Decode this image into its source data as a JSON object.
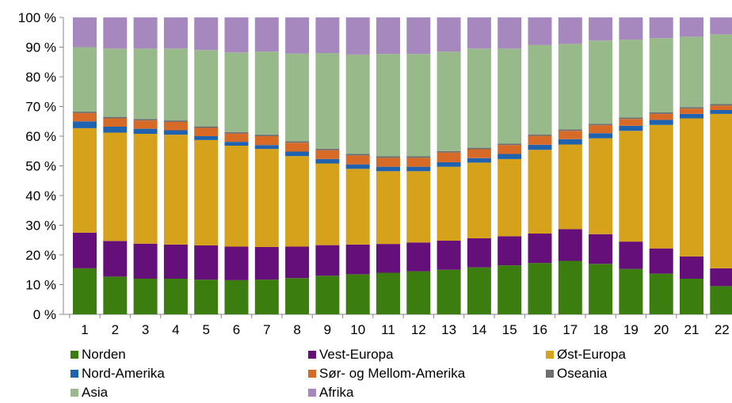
{
  "chart_data": {
    "type": "bar",
    "stacked": true,
    "categories": [
      "1",
      "2",
      "3",
      "4",
      "5",
      "6",
      "7",
      "8",
      "9",
      "10",
      "11",
      "12",
      "13",
      "14",
      "15",
      "16",
      "17",
      "18",
      "19",
      "20",
      "21",
      "22"
    ],
    "ylim": [
      0,
      100
    ],
    "yticks": [
      "0 %",
      "10 %",
      "20 %",
      "30 %",
      "40 %",
      "50 %",
      "60 %",
      "70 %",
      "80 %",
      "90 %",
      "100 %"
    ],
    "grid": false,
    "legend_position": "bottom",
    "series": [
      {
        "name": "Norden",
        "color": "#3b7d0f",
        "values": [
          15.5,
          12.7,
          12.0,
          12.0,
          11.7,
          11.5,
          11.7,
          12.2,
          13.0,
          13.5,
          14.0,
          14.5,
          15.0,
          15.8,
          16.5,
          17.3,
          18.0,
          17.0,
          15.3,
          13.7,
          12.0,
          9.5
        ]
      },
      {
        "name": "Vest-Europa",
        "color": "#640f7a",
        "values": [
          12.0,
          12.0,
          11.8,
          11.5,
          11.5,
          11.3,
          11.0,
          10.6,
          10.3,
          10.0,
          9.7,
          9.7,
          9.8,
          9.8,
          9.8,
          9.9,
          10.7,
          10.0,
          9.2,
          8.5,
          7.5,
          6.0
        ]
      },
      {
        "name": "Øst-Europa",
        "color": "#d6a21c",
        "values": [
          35.2,
          36.5,
          37.0,
          37.0,
          35.5,
          34.0,
          33.0,
          30.5,
          27.5,
          25.5,
          24.5,
          24.0,
          24.9,
          25.5,
          26.0,
          28.2,
          28.5,
          32.3,
          37.3,
          41.6,
          46.5,
          52.0
        ]
      },
      {
        "name": "Nord-Amerika",
        "color": "#1e62b0",
        "values": [
          2.3,
          2.0,
          1.7,
          1.5,
          1.3,
          1.3,
          1.3,
          1.5,
          1.5,
          1.5,
          1.5,
          1.5,
          1.5,
          1.5,
          1.7,
          1.7,
          1.8,
          1.7,
          1.7,
          1.7,
          1.5,
          1.3
        ]
      },
      {
        "name": "Sør- og Mellom-Amerika",
        "color": "#d86a28",
        "values": [
          2.8,
          2.8,
          2.8,
          2.8,
          2.8,
          2.8,
          3.0,
          3.0,
          3.0,
          3.0,
          3.0,
          3.0,
          3.3,
          3.0,
          3.0,
          3.0,
          2.8,
          2.7,
          2.3,
          2.0,
          1.8,
          1.5
        ]
      },
      {
        "name": "Oseania",
        "color": "#6e6e6e",
        "values": [
          0.5,
          0.5,
          0.5,
          0.5,
          0.5,
          0.5,
          0.5,
          0.5,
          0.5,
          0.5,
          0.5,
          0.5,
          0.5,
          0.5,
          0.5,
          0.5,
          0.5,
          0.5,
          0.5,
          0.5,
          0.5,
          0.5
        ]
      },
      {
        "name": "Asia",
        "color": "#98b98a",
        "values": [
          21.7,
          23.0,
          23.7,
          24.2,
          25.7,
          26.8,
          28.0,
          29.5,
          32.2,
          33.5,
          34.5,
          34.5,
          33.5,
          33.4,
          32.0,
          30.1,
          28.8,
          28.0,
          26.2,
          25.0,
          23.7,
          23.5
        ]
      },
      {
        "name": "Afrika",
        "color": "#a688be",
        "values": [
          10.0,
          10.5,
          10.5,
          10.5,
          11.0,
          11.8,
          11.5,
          12.2,
          12.0,
          12.5,
          12.3,
          12.3,
          11.5,
          10.5,
          10.5,
          9.3,
          8.9,
          7.8,
          7.5,
          7.0,
          6.5,
          5.7
        ]
      }
    ]
  }
}
